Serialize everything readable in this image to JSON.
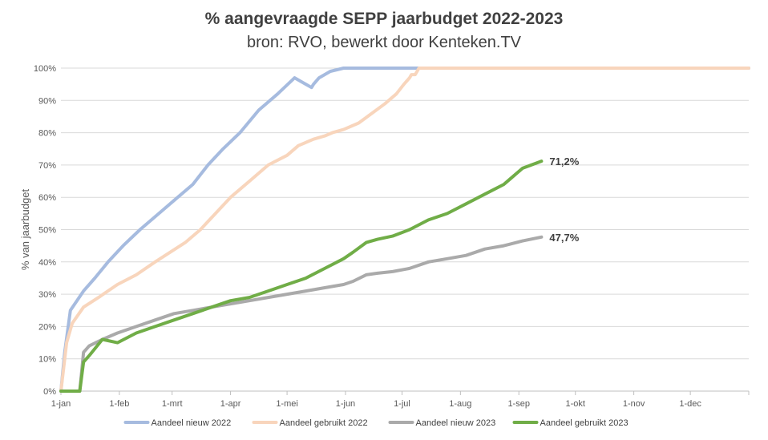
{
  "chart_data": {
    "type": "line",
    "title": "% aangevraagde SEPP jaarbudget 2022-2023",
    "subtitle": "bron: RVO, bewerkt door Kenteken.TV",
    "ylabel": "% van jaarbudget",
    "xlabel": "",
    "xlim": [
      0,
      365
    ],
    "ylim": [
      0,
      100
    ],
    "yticks": [
      0,
      10,
      20,
      30,
      40,
      50,
      60,
      70,
      80,
      90,
      100
    ],
    "ytick_labels": [
      "0%",
      "10%",
      "20%",
      "30%",
      "40%",
      "50%",
      "60%",
      "70%",
      "80%",
      "90%",
      "100%"
    ],
    "xticks": [
      0,
      31,
      59,
      90,
      120,
      151,
      181,
      212,
      243,
      273,
      304,
      334
    ],
    "xtick_labels": [
      "1-jan",
      "1-feb",
      "1-mrt",
      "1-apr",
      "1-mei",
      "1-jun",
      "1-jul",
      "1-aug",
      "1-sep",
      "1-okt",
      "1-nov",
      "1-dec"
    ],
    "grid": true,
    "legend_position": "bottom",
    "series": [
      {
        "name": "Aandeel nieuw 2022",
        "color": "#a6bbdf",
        "x": [
          0,
          2,
          5,
          12,
          18,
          25,
          33,
          42,
          50,
          60,
          70,
          78,
          86,
          95,
          105,
          115,
          124,
          133,
          134,
          137,
          143,
          150,
          200,
          365
        ],
        "y": [
          0,
          12,
          25,
          31,
          35,
          40,
          45,
          50,
          54,
          59,
          64,
          70,
          75,
          80,
          87,
          92,
          97,
          94,
          95,
          97,
          99,
          100,
          100,
          100
        ]
      },
      {
        "name": "Aandeel gebruikt 2022",
        "color": "#f8d5bc",
        "x": [
          0,
          3,
          6,
          12,
          20,
          30,
          40,
          50,
          58,
          66,
          74,
          82,
          90,
          100,
          110,
          120,
          126,
          134,
          140,
          144,
          150,
          158,
          165,
          172,
          178,
          182,
          185,
          186,
          188,
          190,
          365
        ],
        "y": [
          0,
          15,
          21,
          26,
          29,
          33,
          36,
          40,
          43,
          46,
          50,
          55,
          60,
          65,
          70,
          73,
          76,
          78,
          79,
          80,
          81,
          83,
          86,
          89,
          92,
          95,
          97,
          98,
          98,
          100,
          100
        ]
      },
      {
        "name": "Aandeel nieuw 2023",
        "color": "#aaaaaa",
        "x": [
          0,
          5,
          10,
          12,
          15,
          22,
          30,
          40,
          50,
          60,
          70,
          80,
          90,
          100,
          110,
          120,
          130,
          140,
          150,
          155,
          162,
          168,
          176,
          185,
          195,
          205,
          215,
          225,
          235,
          245,
          255
        ],
        "y": [
          0,
          0,
          0,
          12,
          14,
          16,
          18,
          20,
          22,
          24,
          25,
          26,
          27,
          28,
          29,
          30,
          31,
          32,
          33,
          34,
          36,
          36.5,
          37,
          38,
          40,
          41,
          42,
          44,
          45,
          46.5,
          47.7
        ]
      },
      {
        "name": "Aandeel gebruikt 2023",
        "color": "#70ad47",
        "x": [
          0,
          5,
          10,
          12,
          15,
          22,
          30,
          40,
          50,
          60,
          70,
          80,
          90,
          100,
          110,
          120,
          130,
          140,
          150,
          155,
          162,
          168,
          176,
          185,
          195,
          205,
          215,
          225,
          235,
          245,
          255
        ],
        "y": [
          0,
          0,
          0,
          9,
          11,
          16,
          15,
          18,
          20,
          22,
          24,
          26,
          28,
          29,
          31,
          33,
          35,
          38,
          41,
          43,
          46,
          47,
          48,
          50,
          53,
          55,
          58,
          61,
          64,
          69,
          71.2
        ]
      }
    ],
    "annotations": [
      {
        "series": 3,
        "text": "71,2%"
      },
      {
        "series": 2,
        "text": "47,7%"
      }
    ]
  }
}
